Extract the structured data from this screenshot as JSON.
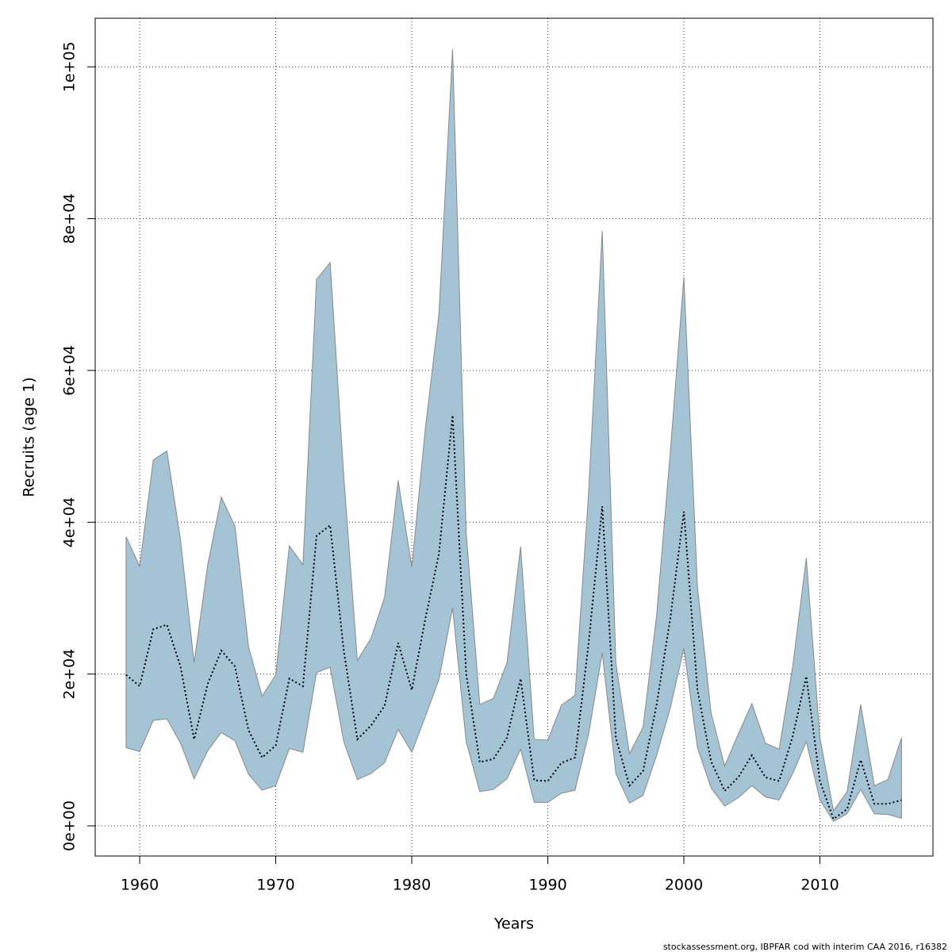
{
  "chart_data": {
    "type": "band-line",
    "xlabel": "Years",
    "ylabel": "Recruits (age 1)",
    "footer": "stockassessment.org, IBPFAR cod with interim CAA 2016, r16382",
    "x": [
      1959,
      1960,
      1961,
      1962,
      1963,
      1964,
      1965,
      1966,
      1967,
      1968,
      1969,
      1970,
      1971,
      1972,
      1973,
      1974,
      1975,
      1976,
      1977,
      1978,
      1979,
      1980,
      1981,
      1982,
      1983,
      1984,
      1985,
      1986,
      1987,
      1988,
      1989,
      1990,
      1991,
      1992,
      1993,
      1994,
      1995,
      1996,
      1997,
      1998,
      1999,
      2000,
      2001,
      2002,
      2003,
      2004,
      2005,
      2006,
      2007,
      2008,
      2009,
      2010,
      2011,
      2012,
      2013,
      2014,
      2015,
      2016
    ],
    "median": {
      "color": "#000000",
      "values": [
        19900,
        18400,
        25900,
        26500,
        21000,
        11400,
        18700,
        23100,
        21000,
        12600,
        9000,
        10600,
        19400,
        18400,
        38200,
        39600,
        23100,
        11400,
        13200,
        15800,
        24100,
        17900,
        27300,
        35900,
        54100,
        20000,
        8400,
        8800,
        11600,
        19400,
        6000,
        5900,
        8300,
        9000,
        24100,
        42100,
        11600,
        5300,
        7200,
        16000,
        27300,
        41400,
        17900,
        8500,
        4600,
        6400,
        9300,
        6400,
        5900,
        11800,
        19700,
        5900,
        900,
        2200,
        8700,
        2900,
        2900,
        3400
      ]
    },
    "band": {
      "color": "#a4c4d6",
      "stroke": "#888888",
      "upper": [
        38100,
        34200,
        48200,
        49400,
        37700,
        21500,
        34400,
        43300,
        39500,
        23600,
        17100,
        19900,
        36900,
        34400,
        72000,
        74200,
        46100,
        21800,
        24700,
        30100,
        45500,
        34100,
        52400,
        67500,
        102300,
        38600,
        16000,
        16800,
        21500,
        36800,
        11400,
        11300,
        15900,
        17200,
        44000,
        78400,
        21500,
        9500,
        13000,
        27800,
        49200,
        72300,
        31500,
        14900,
        7900,
        12100,
        16100,
        10900,
        10100,
        21000,
        35300,
        11600,
        2000,
        4500,
        16000,
        5300,
        6100,
        11600
      ],
      "lower": [
        10300,
        9800,
        13900,
        14100,
        10900,
        6200,
        9900,
        12300,
        11200,
        6800,
        4700,
        5300,
        10200,
        9700,
        20200,
        20900,
        11100,
        6100,
        6900,
        8300,
        12700,
        9700,
        14400,
        19300,
        28700,
        11100,
        4500,
        4800,
        6200,
        10100,
        3100,
        3100,
        4300,
        4700,
        12100,
        22800,
        6900,
        3000,
        4000,
        9300,
        15500,
        23400,
        10300,
        5000,
        2600,
        3700,
        5300,
        3800,
        3400,
        6900,
        11100,
        3400,
        600,
        1600,
        4800,
        1600,
        1500,
        1000
      ]
    },
    "xlim": [
      1956.73,
      2018.31
    ],
    "ylim": [
      -3970,
      106400
    ],
    "xticks": [
      1960,
      1970,
      1980,
      1990,
      2000,
      2010
    ],
    "yticks": [
      {
        "value": 0,
        "label": "0e+00"
      },
      {
        "value": 20000,
        "label": "2e+04"
      },
      {
        "value": 40000,
        "label": "4e+04"
      },
      {
        "value": 60000,
        "label": "6e+04"
      },
      {
        "value": 80000,
        "label": "8e+04"
      },
      {
        "value": 100000,
        "label": "1e+05"
      }
    ],
    "grid": true
  }
}
